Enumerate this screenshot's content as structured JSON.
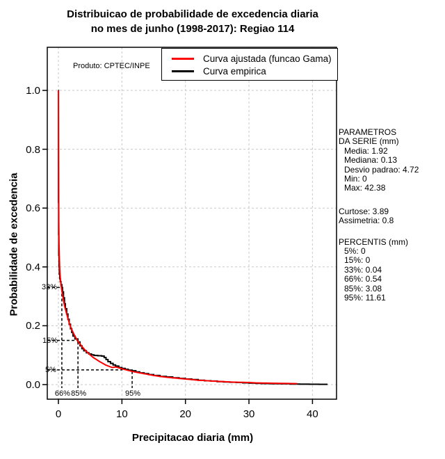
{
  "title_line1": "Distribuicao de probabilidade de excedencia diaria",
  "title_line2": "no mes de junho (1998-2017): Regiao 114",
  "produto_label": "Produto: CPTEC/INPE",
  "legend": {
    "items": [
      {
        "label": "Curva ajustada (funcao Gama)",
        "color": "#ff0000"
      },
      {
        "label": "Curva empirica",
        "color": "#000000"
      }
    ]
  },
  "axes": {
    "x_label": "Precipitacao diaria (mm)",
    "y_label": "Probabilidade de excedencia",
    "x_tick_labels": [
      "0",
      "10",
      "20",
      "30",
      "40"
    ],
    "y_tick_labels": [
      "0.0",
      "0.2",
      "0.4",
      "0.6",
      "0.8",
      "1.0"
    ]
  },
  "side_panel": {
    "params_header1": "PARAMETROS",
    "params_header2": "DA SERIE (mm)",
    "stats": [
      {
        "label": "Media",
        "value": "1.92"
      },
      {
        "label": "Mediana",
        "value": "0.13"
      },
      {
        "label": "Desvio padrao",
        "value": "4.72"
      },
      {
        "label": "Min",
        "value": "0"
      },
      {
        "label": "Max",
        "value": "42.38"
      }
    ],
    "extra_stats": [
      {
        "label": "Curtose",
        "value": "3.89"
      },
      {
        "label": "Assimetria",
        "value": "0.8"
      }
    ],
    "percentis_header": "PERCENTIS (mm)",
    "percentis": [
      {
        "label": "5%",
        "value": "0"
      },
      {
        "label": "15%",
        "value": "0"
      },
      {
        "label": "33%",
        "value": "0.04"
      },
      {
        "label": "66%",
        "value": "0.54"
      },
      {
        "label": "85%",
        "value": "3.08"
      },
      {
        "label": "95%",
        "value": "11.61"
      }
    ]
  },
  "chart_data": {
    "type": "line",
    "title": "Distribuicao de probabilidade de excedencia diaria no mes de junho (1998-2017): Regiao 114",
    "xlabel": "Precipitacao diaria (mm)",
    "ylabel": "Probabilidade de excedencia",
    "x_ticks": [
      0,
      10,
      20,
      30,
      40
    ],
    "y_ticks": [
      0.0,
      0.2,
      0.4,
      0.6,
      0.8,
      1.0
    ],
    "xlim": [
      0,
      43.8
    ],
    "ylim": [
      0,
      1.0
    ],
    "grid": true,
    "legend_position": "top-right-inside",
    "grid_color": "#c8c8c8",
    "series": [
      {
        "name": "Curva ajustada (funcao Gama)",
        "color": "#ff0000",
        "style": "smooth",
        "points": [
          [
            0,
            1.0
          ],
          [
            0.02,
            0.82
          ],
          [
            0.04,
            0.67
          ],
          [
            0.07,
            0.55
          ],
          [
            0.1,
            0.48
          ],
          [
            0.15,
            0.43
          ],
          [
            0.2,
            0.4
          ],
          [
            0.3,
            0.365
          ],
          [
            0.4,
            0.34
          ],
          [
            0.54,
            0.32
          ],
          [
            0.7,
            0.3
          ],
          [
            0.85,
            0.28
          ],
          [
            1.0,
            0.265
          ],
          [
            1.25,
            0.245
          ],
          [
            1.5,
            0.225
          ],
          [
            1.75,
            0.207
          ],
          [
            2.0,
            0.192
          ],
          [
            2.25,
            0.18
          ],
          [
            2.5,
            0.169
          ],
          [
            2.75,
            0.159
          ],
          [
            3.0,
            0.15
          ],
          [
            3.25,
            0.142
          ],
          [
            3.5,
            0.135
          ],
          [
            4.0,
            0.122
          ],
          [
            4.5,
            0.111
          ],
          [
            5.0,
            0.101
          ],
          [
            5.5,
            0.092
          ],
          [
            6.0,
            0.085
          ],
          [
            6.5,
            0.078
          ],
          [
            7.0,
            0.072
          ],
          [
            7.5,
            0.066
          ],
          [
            8.0,
            0.062
          ],
          [
            8.5,
            0.058
          ],
          [
            9.0,
            0.06
          ],
          [
            9.5,
            0.057
          ],
          [
            10.0,
            0.054
          ],
          [
            11.0,
            0.048
          ],
          [
            12.0,
            0.043
          ],
          [
            13.0,
            0.039
          ],
          [
            14.0,
            0.035
          ],
          [
            15.0,
            0.031
          ],
          [
            16.0,
            0.028
          ],
          [
            17.0,
            0.025
          ],
          [
            18.0,
            0.023
          ],
          [
            19.0,
            0.021
          ],
          [
            20.0,
            0.019
          ],
          [
            21.0,
            0.017
          ],
          [
            22.0,
            0.015
          ],
          [
            23.0,
            0.014
          ],
          [
            24.0,
            0.012
          ],
          [
            25.0,
            0.011
          ],
          [
            26.0,
            0.01
          ],
          [
            27.0,
            0.009
          ],
          [
            28.0,
            0.008
          ],
          [
            29.0,
            0.0075
          ],
          [
            30.0,
            0.007
          ],
          [
            31.0,
            0.006
          ],
          [
            32.0,
            0.0055
          ],
          [
            33.0,
            0.005
          ],
          [
            34.0,
            0.0045
          ],
          [
            35.0,
            0.004
          ],
          [
            36.0,
            0.0037
          ],
          [
            37.6,
            0.0032
          ]
        ]
      },
      {
        "name": "Curva empirica",
        "color": "#000000",
        "style": "step",
        "points": [
          [
            0,
            1.0
          ],
          [
            0.01,
            0.62
          ],
          [
            0.03,
            0.51
          ],
          [
            0.06,
            0.44
          ],
          [
            0.1,
            0.4
          ],
          [
            0.15,
            0.375
          ],
          [
            0.22,
            0.36
          ],
          [
            0.3,
            0.35
          ],
          [
            0.4,
            0.34
          ],
          [
            0.54,
            0.33
          ],
          [
            0.65,
            0.315
          ],
          [
            0.8,
            0.295
          ],
          [
            0.95,
            0.275
          ],
          [
            1.1,
            0.258
          ],
          [
            1.3,
            0.24
          ],
          [
            1.5,
            0.222
          ],
          [
            1.7,
            0.205
          ],
          [
            1.9,
            0.19
          ],
          [
            2.1,
            0.177
          ],
          [
            2.3,
            0.165
          ],
          [
            2.6,
            0.155
          ],
          [
            3.08,
            0.145
          ],
          [
            3.4,
            0.132
          ],
          [
            3.7,
            0.122
          ],
          [
            4.0,
            0.115
          ],
          [
            4.4,
            0.108
          ],
          [
            4.8,
            0.104
          ],
          [
            5.2,
            0.101
          ],
          [
            5.6,
            0.099
          ],
          [
            6.2,
            0.098
          ],
          [
            6.8,
            0.097
          ],
          [
            7.2,
            0.092
          ],
          [
            7.5,
            0.085
          ],
          [
            7.8,
            0.078
          ],
          [
            8.2,
            0.072
          ],
          [
            8.6,
            0.067
          ],
          [
            9.0,
            0.063
          ],
          [
            9.5,
            0.058
          ],
          [
            10.0,
            0.055
          ],
          [
            10.5,
            0.052
          ],
          [
            11.0,
            0.049
          ],
          [
            11.61,
            0.047
          ],
          [
            12.2,
            0.043
          ],
          [
            12.8,
            0.04
          ],
          [
            13.5,
            0.037
          ],
          [
            14.2,
            0.034
          ],
          [
            15.0,
            0.031
          ],
          [
            16.0,
            0.028
          ],
          [
            17.0,
            0.026
          ],
          [
            18.0,
            0.023
          ],
          [
            19.0,
            0.021
          ],
          [
            20.0,
            0.019
          ],
          [
            21.0,
            0.017
          ],
          [
            22.0,
            0.015
          ],
          [
            23.0,
            0.013
          ],
          [
            24.0,
            0.012
          ],
          [
            25.0,
            0.01
          ],
          [
            26.0,
            0.009
          ],
          [
            27.0,
            0.008
          ],
          [
            28.0,
            0.007
          ],
          [
            29.0,
            0.006
          ],
          [
            30.0,
            0.005
          ],
          [
            31.0,
            0.004
          ],
          [
            32.0,
            0.0035
          ],
          [
            33.5,
            0.003
          ],
          [
            35.0,
            0.0025
          ],
          [
            36.5,
            0.002
          ],
          [
            38.0,
            0.0015
          ],
          [
            39.5,
            0.0012
          ],
          [
            41.0,
            0.001
          ],
          [
            42.38,
            0.001
          ]
        ]
      }
    ],
    "percentile_markers": [
      {
        "h_label": "33%",
        "p": 0.33,
        "v_label": "66%",
        "x": 0.54,
        "h_end_x": 0.54
      },
      {
        "h_label": "15%",
        "p": 0.15,
        "v_label": "85%",
        "x": 3.08,
        "h_end_x": 3.08
      },
      {
        "h_label": "5%",
        "p": 0.05,
        "v_label": "95%",
        "x": 11.61,
        "h_end_x": 10.1
      }
    ]
  }
}
